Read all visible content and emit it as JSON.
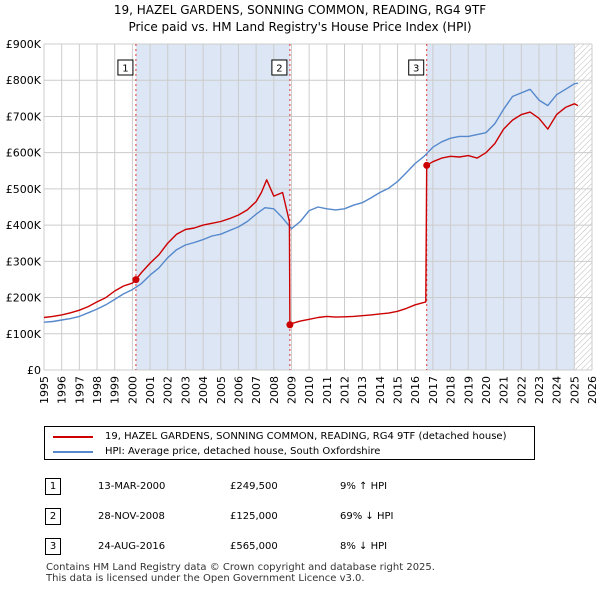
{
  "title": {
    "line1": "19, HAZEL GARDENS, SONNING COMMON, READING, RG4 9TF",
    "line2": "Price paid vs. HM Land Registry's House Price Index (HPI)"
  },
  "colors": {
    "property": "#cc0000",
    "hpi": "#5588cc",
    "shade": "#dde6f5",
    "grid": "#cccccc",
    "marker_line": "#dd3333"
  },
  "chart_data": {
    "type": "line",
    "title": "19, HAZEL GARDENS, SONNING COMMON, READING, RG4 9TF — Price paid vs. HM Land Registry's House Price Index (HPI)",
    "xlabel": "",
    "ylabel": "",
    "xlim": [
      1995,
      2026
    ],
    "ylim": [
      0,
      900000
    ],
    "y_ticks": [
      {
        "value": 0,
        "label": "£0"
      },
      {
        "value": 100000,
        "label": "£100K"
      },
      {
        "value": 200000,
        "label": "£200K"
      },
      {
        "value": 300000,
        "label": "£300K"
      },
      {
        "value": 400000,
        "label": "£400K"
      },
      {
        "value": 500000,
        "label": "£500K"
      },
      {
        "value": 600000,
        "label": "£600K"
      },
      {
        "value": 700000,
        "label": "£700K"
      },
      {
        "value": 800000,
        "label": "£800K"
      },
      {
        "value": 900000,
        "label": "£900K"
      }
    ],
    "x_ticks": [
      "1995",
      "1996",
      "1997",
      "1998",
      "1999",
      "2000",
      "2001",
      "2002",
      "2003",
      "2004",
      "2005",
      "2006",
      "2007",
      "2008",
      "2009",
      "2010",
      "2011",
      "2012",
      "2013",
      "2014",
      "2015",
      "2016",
      "2017",
      "2018",
      "2019",
      "2020",
      "2021",
      "2022",
      "2023",
      "2024",
      "2025",
      "2026"
    ],
    "grid": true,
    "shaded_periods": [
      [
        2000.2,
        2008.91
      ],
      [
        2016.65,
        2025.0
      ]
    ],
    "future_hatch_from": 2025.0,
    "series": [
      {
        "name": "19, HAZEL GARDENS, SONNING COMMON, READING, RG4 9TF (detached house)",
        "x": [
          1995.0,
          1995.5,
          1996.0,
          1996.5,
          1997.0,
          1997.5,
          1998.0,
          1998.5,
          1999.0,
          1999.5,
          2000.0,
          2000.2,
          2000.5,
          2001.0,
          2001.5,
          2002.0,
          2002.5,
          2003.0,
          2003.5,
          2004.0,
          2004.5,
          2005.0,
          2005.5,
          2006.0,
          2006.5,
          2007.0,
          2007.3,
          2007.6,
          2008.0,
          2008.5,
          2008.88,
          2008.91,
          2009.0,
          2009.5,
          2010.0,
          2010.5,
          2011.0,
          2011.5,
          2012.0,
          2012.5,
          2013.0,
          2013.5,
          2014.0,
          2014.5,
          2015.0,
          2015.5,
          2016.0,
          2016.6,
          2016.65,
          2017.0,
          2017.5,
          2018.0,
          2018.5,
          2019.0,
          2019.5,
          2020.0,
          2020.5,
          2021.0,
          2021.5,
          2022.0,
          2022.5,
          2023.0,
          2023.5,
          2024.0,
          2024.5,
          2025.0,
          2025.2
        ],
        "values": [
          145000,
          148000,
          152000,
          158000,
          165000,
          175000,
          188000,
          200000,
          218000,
          232000,
          240000,
          249500,
          268000,
          295000,
          318000,
          350000,
          375000,
          388000,
          392000,
          400000,
          405000,
          410000,
          418000,
          428000,
          442000,
          465000,
          490000,
          525000,
          480000,
          490000,
          410000,
          125000,
          128000,
          135000,
          140000,
          145000,
          148000,
          146000,
          147000,
          148000,
          150000,
          152000,
          155000,
          157000,
          162000,
          170000,
          180000,
          188000,
          565000,
          575000,
          585000,
          590000,
          588000,
          592000,
          585000,
          600000,
          625000,
          665000,
          690000,
          705000,
          712000,
          695000,
          665000,
          705000,
          725000,
          735000,
          730000
        ]
      },
      {
        "name": "HPI: Average price, detached house, South Oxfordshire",
        "x": [
          1995.0,
          1995.5,
          1996.0,
          1996.5,
          1997.0,
          1997.5,
          1998.0,
          1998.5,
          1999.0,
          1999.5,
          2000.0,
          2000.5,
          2001.0,
          2001.5,
          2002.0,
          2002.5,
          2003.0,
          2003.5,
          2004.0,
          2004.5,
          2005.0,
          2005.5,
          2006.0,
          2006.5,
          2007.0,
          2007.5,
          2008.0,
          2008.5,
          2009.0,
          2009.5,
          2010.0,
          2010.5,
          2011.0,
          2011.5,
          2012.0,
          2012.5,
          2013.0,
          2013.5,
          2014.0,
          2014.5,
          2015.0,
          2015.5,
          2016.0,
          2016.5,
          2017.0,
          2017.5,
          2018.0,
          2018.5,
          2019.0,
          2019.5,
          2020.0,
          2020.5,
          2021.0,
          2021.5,
          2022.0,
          2022.5,
          2023.0,
          2023.5,
          2024.0,
          2024.5,
          2025.0,
          2025.2
        ],
        "values": [
          132000,
          134000,
          138000,
          142000,
          148000,
          158000,
          168000,
          180000,
          195000,
          210000,
          222000,
          238000,
          262000,
          282000,
          310000,
          332000,
          345000,
          352000,
          360000,
          370000,
          375000,
          385000,
          395000,
          410000,
          430000,
          448000,
          445000,
          420000,
          390000,
          410000,
          440000,
          450000,
          445000,
          442000,
          445000,
          455000,
          462000,
          475000,
          490000,
          502000,
          520000,
          545000,
          570000,
          590000,
          615000,
          630000,
          640000,
          645000,
          645000,
          650000,
          655000,
          680000,
          720000,
          755000,
          765000,
          775000,
          745000,
          730000,
          760000,
          775000,
          790000,
          792000
        ]
      }
    ],
    "markers": [
      {
        "label": "1",
        "x": 2000.2,
        "y": 249500
      },
      {
        "label": "2",
        "x": 2008.91,
        "y": 125000
      },
      {
        "label": "3",
        "x": 2016.65,
        "y": 565000
      }
    ]
  },
  "legend": {
    "property_label": "19, HAZEL GARDENS, SONNING COMMON, READING, RG4 9TF (detached house)",
    "hpi_label": "HPI: Average price, detached house, South Oxfordshire"
  },
  "transactions": [
    {
      "num": "1",
      "date": "13-MAR-2000",
      "price": "£249,500",
      "hpi": "9% ↑ HPI"
    },
    {
      "num": "2",
      "date": "28-NOV-2008",
      "price": "£125,000",
      "hpi": "69% ↓ HPI"
    },
    {
      "num": "3",
      "date": "24-AUG-2016",
      "price": "£565,000",
      "hpi": "8% ↓ HPI"
    }
  ],
  "footer": {
    "line1": "Contains HM Land Registry data © Crown copyright and database right 2025.",
    "line2": "This data is licensed under the Open Government Licence v3.0."
  }
}
